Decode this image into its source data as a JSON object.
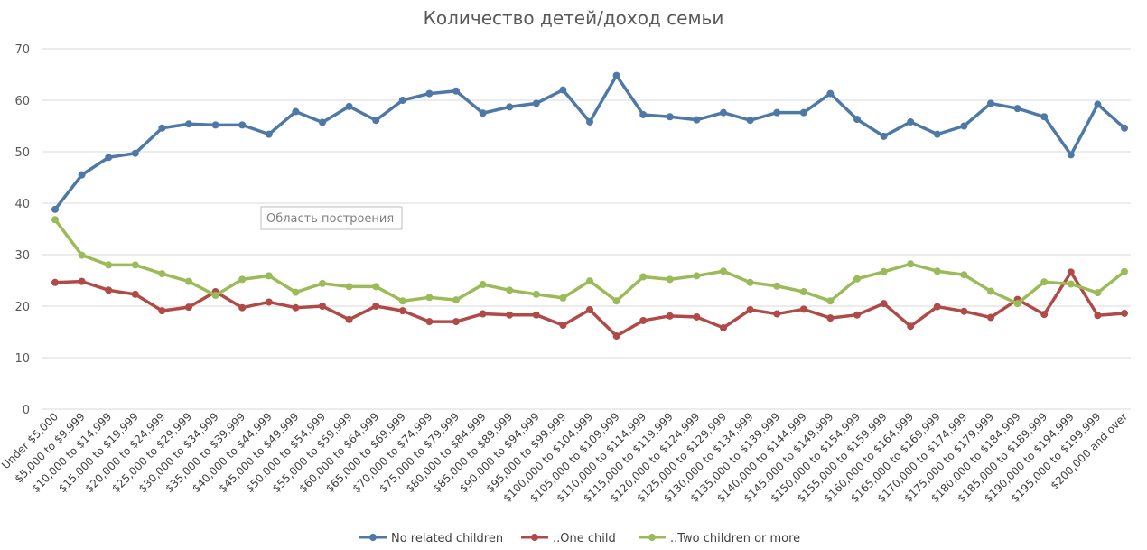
{
  "chart_data": {
    "type": "line",
    "title": "Количество детей/доход семьи",
    "xlabel": "",
    "ylabel": "",
    "ylim": [
      0,
      70
    ],
    "yticks": [
      0,
      10,
      20,
      30,
      40,
      50,
      60,
      70
    ],
    "grid": true,
    "legend_position": "bottom",
    "categories": [
      "Under $5,000",
      "$5,000 to $9,999",
      "$10,000 to $14,999",
      "$15,000 to $19,999",
      "$20,000 to $24,999",
      "$25,000 to $29,999",
      "$30,000 to $34,999",
      "$35,000 to $39,999",
      "$40,000 to $44,999",
      "$45,000 to $49,999",
      "$50,000 to $54,999",
      "$55,000 to $59,999",
      "$60,000 to $64,999",
      "$65,000 to $69,999",
      "$70,000 to $74,999",
      "$75,000 to $79,999",
      "$80,000 to $84,999",
      "$85,000 to $89,999",
      "$90,000 to $94,999",
      "$95,000 to $99,999",
      "$100,000 to $104,999",
      "$105,000 to $109,999",
      "$110,000 to $114,999",
      "$115,000 to $119,999",
      "$120,000 to $124,999",
      "$125,000 to $129,999",
      "$130,000 to $134,999",
      "$135,000 to $139,999",
      "$140,000 to $144,999",
      "$145,000 to $149,999",
      "$150,000 to $154,999",
      "$155,000 to $159,999",
      "$160,000 to $164,999",
      "$165,000 to $169,999",
      "$170,000 to $174,999",
      "$175,000 to $179,999",
      "$180,000 to $184,999",
      "$185,000 to $189,999",
      "$190,000 to $194,999",
      "$195,000 to $199,999",
      "$200,000 and over"
    ],
    "series": [
      {
        "name": "No related children",
        "color": "#4e79a7",
        "values": [
          38.8,
          45.5,
          48.9,
          49.7,
          54.6,
          55.4,
          55.2,
          55.2,
          53.4,
          57.8,
          55.7,
          58.8,
          56.1,
          60.0,
          61.3,
          61.8,
          57.5,
          58.7,
          59.4,
          62.0,
          55.8,
          64.8,
          57.2,
          56.8,
          56.2,
          57.6,
          56.1,
          57.6,
          57.6,
          61.3,
          56.3,
          53.0,
          55.8,
          53.4,
          55.0,
          59.4,
          58.4,
          56.8,
          49.4,
          59.2,
          54.6
        ]
      },
      {
        "name": "..One child",
        "color": "#b04a47",
        "values": [
          24.6,
          24.8,
          23.1,
          22.3,
          19.1,
          19.8,
          22.8,
          19.7,
          20.8,
          19.7,
          20.0,
          17.4,
          20.0,
          19.1,
          17.0,
          17.0,
          18.5,
          18.3,
          18.3,
          16.3,
          19.3,
          14.2,
          17.2,
          18.1,
          17.9,
          15.8,
          19.3,
          18.5,
          19.4,
          17.7,
          18.3,
          20.5,
          16.1,
          19.9,
          19.0,
          17.8,
          21.3,
          18.4,
          26.6,
          18.2,
          18.6
        ]
      },
      {
        "name": "..Two children or more",
        "color": "#9bbb59",
        "values": [
          36.8,
          29.9,
          28.0,
          28.0,
          26.3,
          24.8,
          22.1,
          25.2,
          25.9,
          22.7,
          24.4,
          23.8,
          23.8,
          21.0,
          21.7,
          21.2,
          24.2,
          23.1,
          22.3,
          21.6,
          24.9,
          21.0,
          25.7,
          25.2,
          25.9,
          26.8,
          24.6,
          23.9,
          22.8,
          21.0,
          25.3,
          26.7,
          28.2,
          26.8,
          26.1,
          22.9,
          20.5,
          24.7,
          24.3,
          22.6,
          26.7
        ]
      }
    ]
  },
  "tooltip": {
    "text": "Область построения"
  }
}
